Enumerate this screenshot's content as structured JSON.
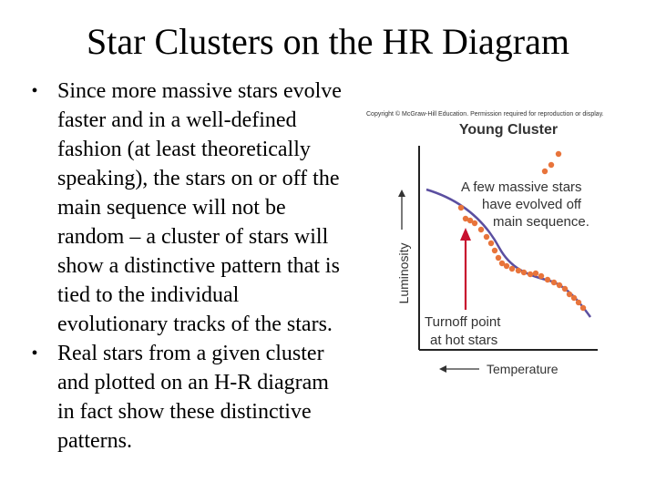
{
  "slide": {
    "title": "Star Clusters on the HR Diagram",
    "bullets": [
      "Since more massive stars evolve faster and in a well-defined fashion (at least theoretically speaking), the stars on or off the main sequence will not be random – a cluster of stars will show a distinctive pattern that is tied to the individual evolutionary tracks of the stars.",
      "Real stars from a given cluster and plotted on an H-R diagram in fact show these distinctive patterns."
    ],
    "bullet_symbol": "•"
  },
  "figure": {
    "copyright": "Copyright © McGraw-Hill Education. Permission required for reproduction or display.",
    "title": "Young Cluster",
    "annotation_lines": [
      "A few massive stars",
      "have evolved off",
      "main sequence."
    ],
    "turnoff_lines": [
      "Turnoff point",
      "at hot stars"
    ],
    "y_axis_label": "Luminosity",
    "x_axis_label": "Temperature",
    "colors": {
      "dots": "#e8743b",
      "main_sequence_line": "#5b4fa0",
      "turnoff_arrow": "#c8102e",
      "axes": "#222222",
      "text": "#333333"
    }
  }
}
